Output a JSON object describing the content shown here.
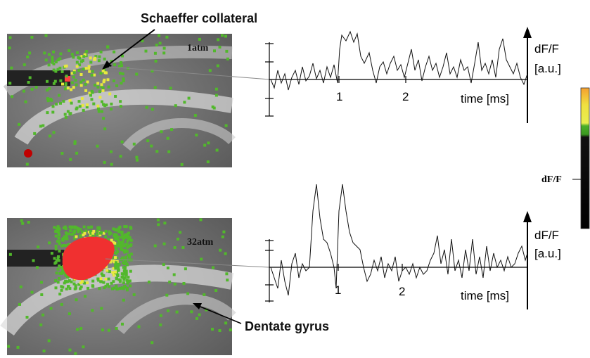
{
  "annotations": {
    "top": "Schaeffer collateral",
    "bottom": "Dentate gyrus"
  },
  "panels": [
    {
      "pressure": "1atm",
      "trace": {
        "y_label": "dF/F",
        "y_unit": "[a.u.]",
        "x_ticks": [
          "1",
          "2"
        ],
        "x_label": "time [ms]"
      }
    },
    {
      "pressure": "32atm",
      "trace": {
        "y_label": "dF/F",
        "y_unit": "[a.u.]",
        "x_ticks": [
          "1",
          "2"
        ],
        "x_label": "time [ms]"
      }
    }
  ],
  "colorbar": {
    "label": "dF/F"
  }
}
